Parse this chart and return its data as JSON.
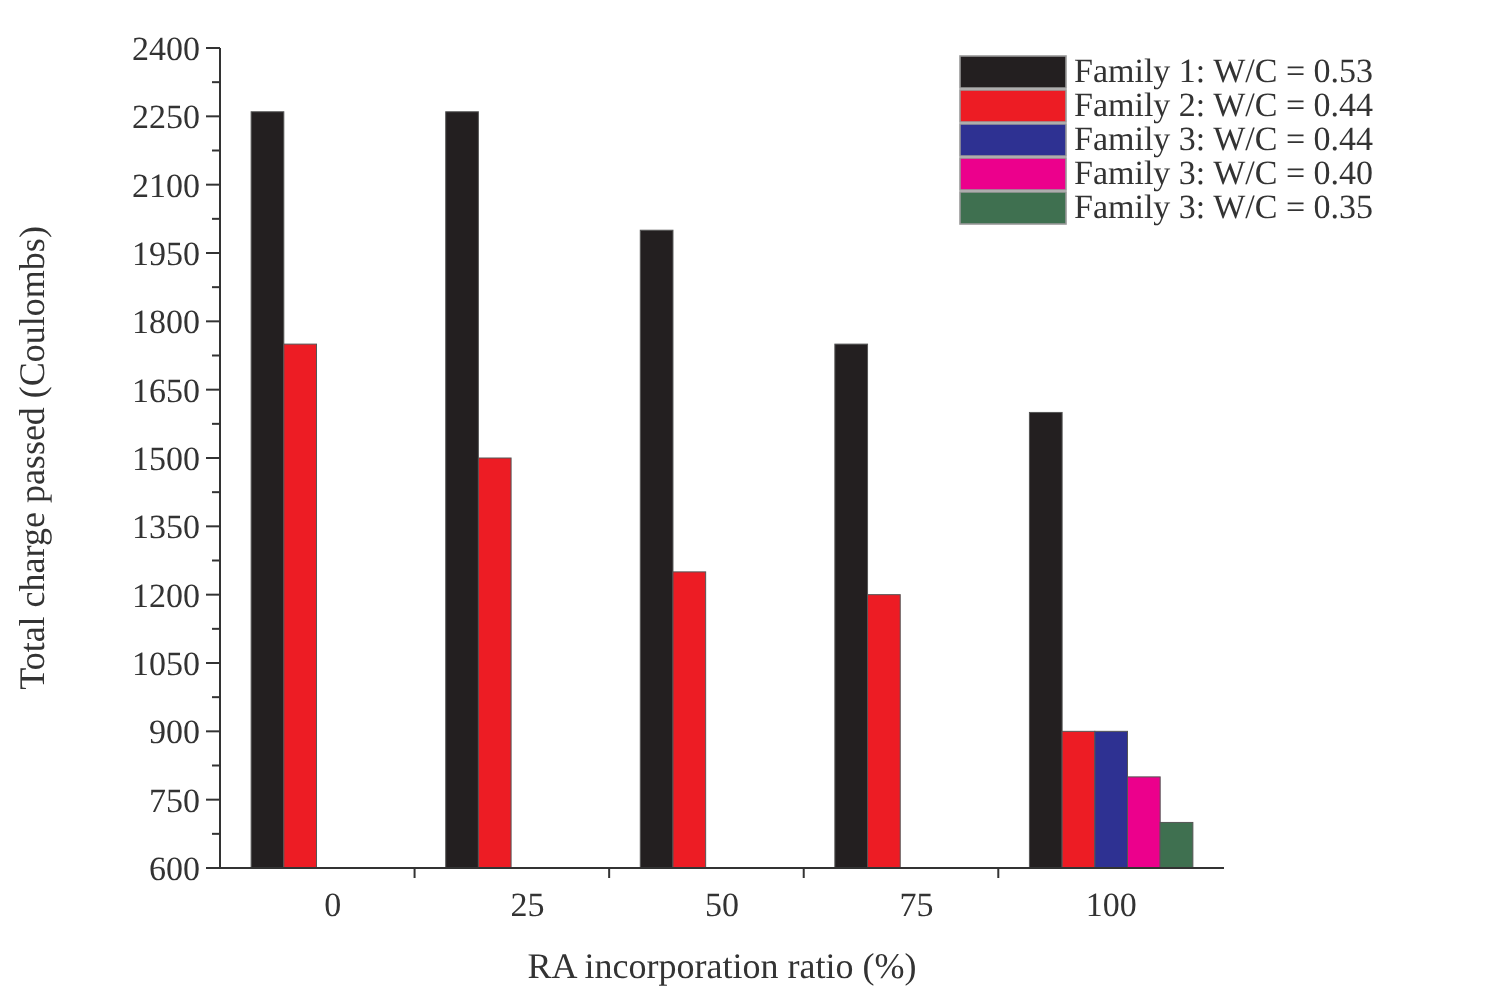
{
  "chart_data": {
    "type": "bar",
    "xlabel": "RA incorporation ratio (%)",
    "ylabel": "Total charge passed (Coulombs)",
    "categories": [
      "0",
      "25",
      "50",
      "75",
      "100"
    ],
    "series": [
      {
        "name": "Family 1: W/C = 0.53",
        "color": "#231f20",
        "values": [
          2260,
          2260,
          2000,
          1750,
          1600
        ]
      },
      {
        "name": "Family 2: W/C = 0.44",
        "color": "#ed1c24",
        "values": [
          1750,
          1500,
          1250,
          1200,
          900
        ]
      },
      {
        "name": "Family 3: W/C = 0.44",
        "color": "#2e3192",
        "values": [
          null,
          null,
          null,
          null,
          900
        ]
      },
      {
        "name": "Family 3: W/C = 0.40",
        "color": "#ec008c",
        "values": [
          null,
          null,
          null,
          null,
          800
        ]
      },
      {
        "name": "Family 3: W/C = 0.35",
        "color": "#3f7050",
        "values": [
          null,
          null,
          null,
          null,
          700
        ]
      }
    ],
    "ylim": [
      600,
      2400
    ],
    "yticks": [
      600,
      {
        "value": 675,
        "label": null
      },
      750,
      {
        "value": 825,
        "label": null
      },
      900,
      {
        "value": 975,
        "label": null
      },
      1050,
      {
        "value": 1125,
        "label": null
      },
      1200,
      {
        "value": 1275,
        "label": null
      },
      1350,
      {
        "value": 1425,
        "label": null
      },
      1500,
      {
        "value": 1575,
        "label": null
      },
      1650,
      {
        "value": 1725,
        "label": null
      },
      1800,
      {
        "value": 1875,
        "label": null
      },
      1950,
      {
        "value": 2025,
        "label": null
      },
      2100,
      {
        "value": 2175,
        "label": null
      },
      2250,
      {
        "value": 2325,
        "label": null
      },
      2400
    ],
    "legend": "top right",
    "grid": false
  }
}
